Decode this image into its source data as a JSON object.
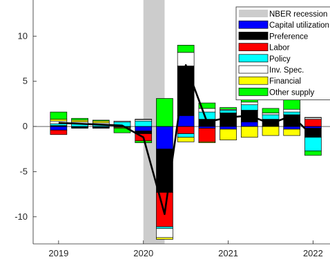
{
  "chart_data": {
    "type": "bar",
    "stacked": true,
    "x": [
      2019.0,
      2019.25,
      2019.5,
      2019.75,
      2020.0,
      2020.25,
      2020.5,
      2020.75,
      2021.0,
      2021.25,
      2021.5,
      2021.75,
      2022.0
    ],
    "xlim": [
      2018.7,
      2022.2
    ],
    "ylim": [
      -13,
      14
    ],
    "xticks": [
      2019,
      2020,
      2021,
      2022
    ],
    "xtick_labels": [
      "2019",
      "2020",
      "2021",
      "2022"
    ],
    "yticks": [
      -10,
      -5,
      0,
      5,
      10
    ],
    "ytick_labels": [
      "-10",
      "-5",
      "0",
      "5",
      "10"
    ],
    "recession": {
      "name": "NBER recession",
      "start": 2020.0,
      "end": 2020.25,
      "color": "#cccccc"
    },
    "series": [
      {
        "name": "Capital utilization",
        "color": "#0000ff",
        "values": [
          -0.4,
          -0.1,
          -0.1,
          -0.1,
          -0.5,
          -2.5,
          1.2,
          -0.2,
          -0.3,
          0.5,
          0.0,
          -0.3,
          -0.2
        ]
      },
      {
        "name": "Preference",
        "color": "#000000",
        "values": [
          0.1,
          -0.1,
          -0.1,
          0.0,
          -0.3,
          -4.8,
          5.5,
          0.8,
          1.5,
          1.3,
          0.8,
          1.3,
          -1.0
        ]
      },
      {
        "name": "Labor",
        "color": "#ff0000",
        "values": [
          -0.5,
          0.0,
          0.0,
          0.0,
          -0.8,
          -3.8,
          -0.8,
          -1.5,
          0.0,
          0.0,
          0.0,
          0.0,
          0.8
        ]
      },
      {
        "name": "Policy",
        "color": "#00ffff",
        "values": [
          0.2,
          0.3,
          0.2,
          0.5,
          0.6,
          -0.2,
          -0.4,
          0.8,
          0.3,
          0.6,
          0.5,
          0.3,
          -1.5
        ]
      },
      {
        "name": "Inv. Spec.",
        "color": "#ffffff",
        "values": [
          0.3,
          0.2,
          0.2,
          0.1,
          0.2,
          -1.0,
          1.5,
          0.4,
          0.1,
          0.3,
          0.2,
          0.3,
          0.2
        ]
      },
      {
        "name": "Financial",
        "color": "#ffff00",
        "values": [
          0.2,
          0.2,
          0.2,
          -0.1,
          0.0,
          -0.2,
          -0.5,
          -0.1,
          -1.2,
          -1.2,
          -1.0,
          -0.7,
          0.0
        ]
      },
      {
        "name": "Other supply",
        "color": "#00ff00",
        "values": [
          0.8,
          0.2,
          0.1,
          -0.5,
          -0.2,
          3.1,
          0.8,
          0.6,
          0.2,
          0.3,
          0.5,
          1.2,
          -0.5
        ]
      }
    ],
    "line": {
      "color": "#000000",
      "values": [
        0.4,
        0.3,
        0.2,
        0.1,
        -1.2,
        -9.7,
        6.8,
        0.5,
        1.0,
        1.2,
        0.3,
        1.2,
        -1.1
      ]
    },
    "legend": "top-right"
  }
}
